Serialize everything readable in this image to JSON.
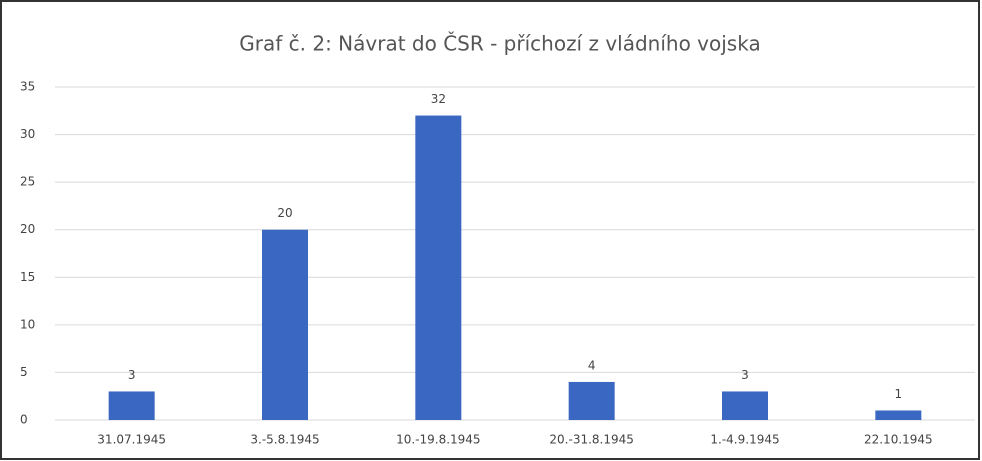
{
  "chart_data": {
    "type": "bar",
    "title": "Graf č. 2: Návrat do ČSR - příchozí z vládního vojska",
    "categories": [
      "31.07.1945",
      "3.-5.8.1945",
      "10.-19.8.1945",
      "20.-31.8.1945",
      "1.-4.9.1945",
      "22.10.1945"
    ],
    "values": [
      3,
      20,
      32,
      4,
      3,
      1
    ],
    "color": "#3a67c2",
    "ylim": [
      0,
      35
    ],
    "yticks": [
      0,
      5,
      10,
      15,
      20,
      25,
      30,
      35
    ],
    "grid": true
  }
}
